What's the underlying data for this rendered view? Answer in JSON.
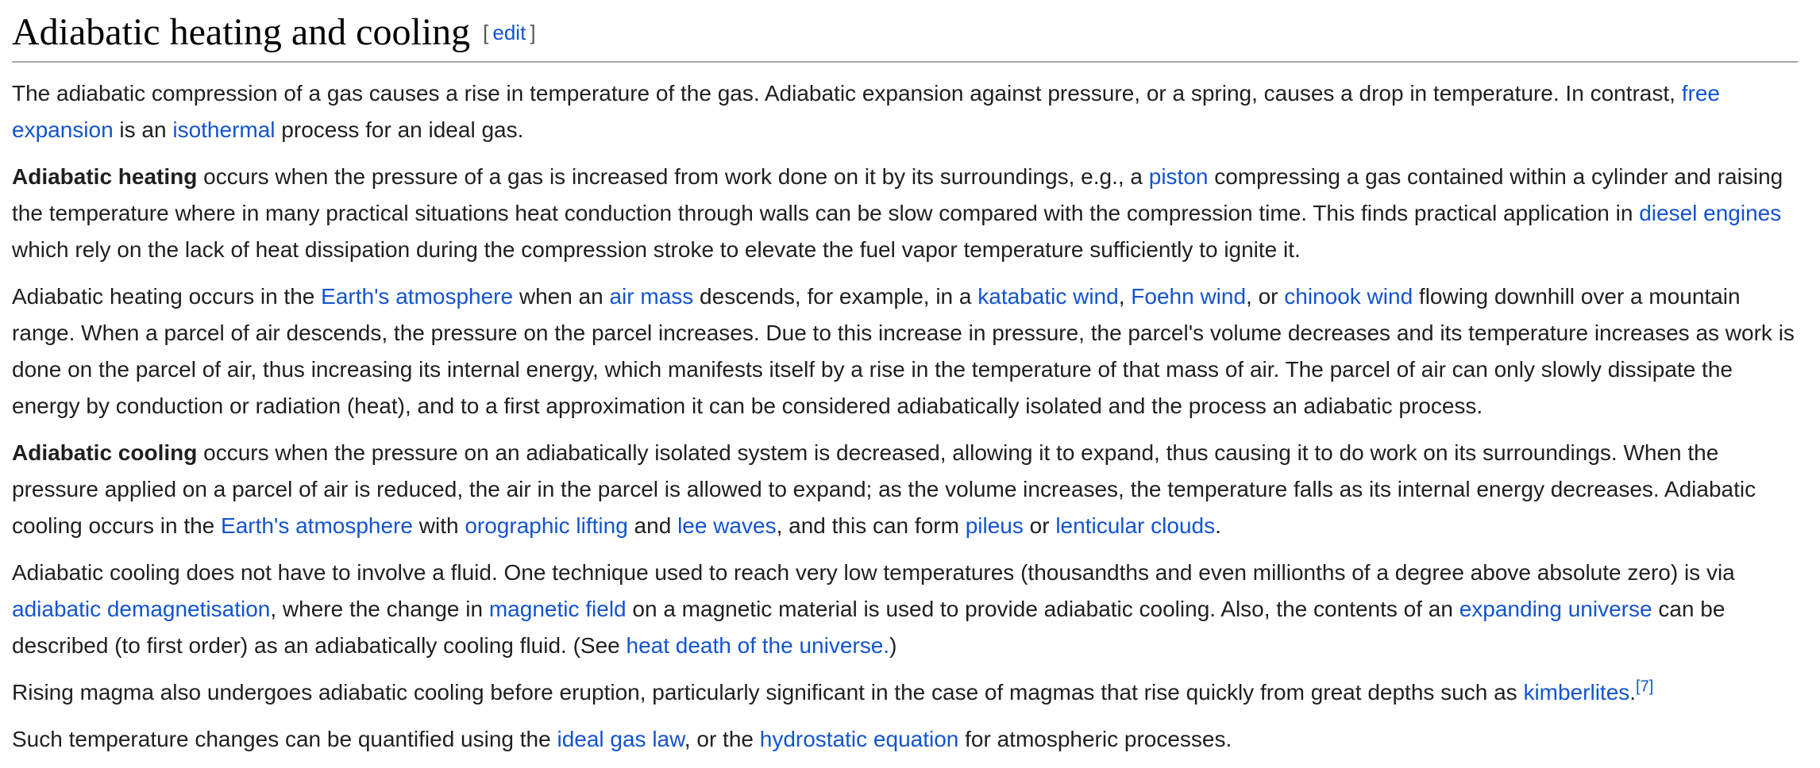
{
  "colors": {
    "link": "#1254cf",
    "text": "#1f1f1f",
    "heading_rule": "#a8a8a8",
    "bracket": "#54595d",
    "background": "#ffffff"
  },
  "heading": {
    "title": "Adiabatic heating and cooling",
    "bracket_open": "[",
    "edit_label": "edit",
    "bracket_close": "]"
  },
  "article": {
    "paragraphs": [
      [
        {
          "t": "text",
          "s": "The adiabatic compression of a gas causes a rise in temperature of the gas. Adiabatic expansion against pressure, or a spring, causes a drop in temperature. In contrast, "
        },
        {
          "t": "link",
          "s": "free expansion"
        },
        {
          "t": "text",
          "s": " is an "
        },
        {
          "t": "link",
          "s": "isothermal"
        },
        {
          "t": "text",
          "s": " process for an ideal gas."
        }
      ],
      [
        {
          "t": "bold",
          "s": "Adiabatic heating"
        },
        {
          "t": "text",
          "s": " occurs when the pressure of a gas is increased from work done on it by its surroundings, e.g., a "
        },
        {
          "t": "link",
          "s": "piston"
        },
        {
          "t": "text",
          "s": " compressing a gas contained within a cylinder and raising the temperature where in many practical situations heat conduction through walls can be slow compared with the compression time. This finds practical application in "
        },
        {
          "t": "link",
          "s": "diesel engines"
        },
        {
          "t": "text",
          "s": " which rely on the lack of heat dissipation during the compression stroke to elevate the fuel vapor temperature sufficiently to ignite it."
        }
      ],
      [
        {
          "t": "text",
          "s": "Adiabatic heating occurs in the "
        },
        {
          "t": "link",
          "s": "Earth's atmosphere"
        },
        {
          "t": "text",
          "s": " when an "
        },
        {
          "t": "link",
          "s": "air mass"
        },
        {
          "t": "text",
          "s": " descends, for example, in a "
        },
        {
          "t": "link",
          "s": "katabatic wind"
        },
        {
          "t": "text",
          "s": ", "
        },
        {
          "t": "link",
          "s": "Foehn wind"
        },
        {
          "t": "text",
          "s": ", or "
        },
        {
          "t": "link",
          "s": "chinook wind"
        },
        {
          "t": "text",
          "s": " flowing downhill over a mountain range. When a parcel of air descends, the pressure on the parcel increases. Due to this increase in pressure, the parcel's volume decreases and its temperature increases as work is done on the parcel of air, thus increasing its internal energy, which manifests itself by a rise in the temperature of that mass of air. The parcel of air can only slowly dissipate the energy by conduction or radiation (heat), and to a first approximation it can be considered adiabatically isolated and the process an adiabatic process."
        }
      ],
      [
        {
          "t": "bold",
          "s": "Adiabatic cooling"
        },
        {
          "t": "text",
          "s": " occurs when the pressure on an adiabatically isolated system is decreased, allowing it to expand, thus causing it to do work on its surroundings. When the pressure applied on a parcel of air is reduced, the air in the parcel is allowed to expand; as the volume increases, the temperature falls as its internal energy decreases. Adiabatic cooling occurs in the "
        },
        {
          "t": "link",
          "s": "Earth's atmosphere"
        },
        {
          "t": "text",
          "s": " with "
        },
        {
          "t": "link",
          "s": "orographic lifting"
        },
        {
          "t": "text",
          "s": " and "
        },
        {
          "t": "link",
          "s": "lee waves"
        },
        {
          "t": "text",
          "s": ", and this can form "
        },
        {
          "t": "link",
          "s": "pileus"
        },
        {
          "t": "text",
          "s": " or "
        },
        {
          "t": "link",
          "s": "lenticular clouds"
        },
        {
          "t": "text",
          "s": "."
        }
      ],
      [
        {
          "t": "text",
          "s": "Adiabatic cooling does not have to involve a fluid. One technique used to reach very low temperatures (thousandths and even millionths of a degree above absolute zero) is via "
        },
        {
          "t": "link",
          "s": "adiabatic demagnetisation"
        },
        {
          "t": "text",
          "s": ", where the change in "
        },
        {
          "t": "link",
          "s": "magnetic field"
        },
        {
          "t": "text",
          "s": " on a magnetic material is used to provide adiabatic cooling. Also, the contents of an "
        },
        {
          "t": "link",
          "s": "expanding universe"
        },
        {
          "t": "text",
          "s": " can be described (to first order) as an adiabatically cooling fluid. (See "
        },
        {
          "t": "link",
          "s": "heat death of the universe."
        },
        {
          "t": "text",
          "s": ")"
        }
      ],
      [
        {
          "t": "text",
          "s": "Rising magma also undergoes adiabatic cooling before eruption, particularly significant in the case of magmas that rise quickly from great depths such as "
        },
        {
          "t": "link",
          "s": "kimberlites"
        },
        {
          "t": "text",
          "s": "."
        },
        {
          "t": "ref",
          "s": "[7]"
        }
      ],
      [
        {
          "t": "text",
          "s": "Such temperature changes can be quantified using the "
        },
        {
          "t": "link",
          "s": "ideal gas law"
        },
        {
          "t": "text",
          "s": ", or the "
        },
        {
          "t": "link",
          "s": "hydrostatic equation"
        },
        {
          "t": "text",
          "s": " for atmospheric processes."
        }
      ]
    ]
  }
}
